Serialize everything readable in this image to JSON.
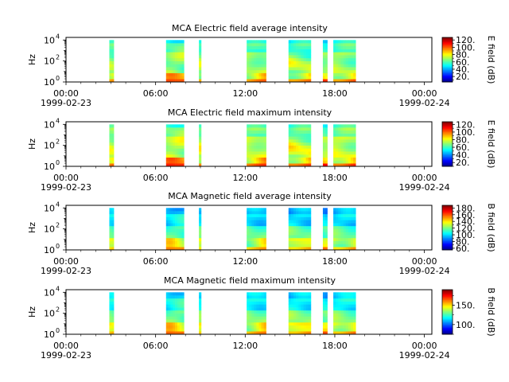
{
  "figure": {
    "background": "#ffffff",
    "x_tick_labels": [
      "00:00",
      "06:00",
      "12:00",
      "18:00",
      "00:00"
    ],
    "x_date_labels": [
      "1999-02-23",
      "1999-02-24"
    ]
  },
  "chart_data": [
    {
      "type": "heatmap",
      "title": "MCA  Electric field average intensity",
      "ylabel": "Hz",
      "colorbar_label": "E field (dB)",
      "colorbar_ticks": [
        "20.",
        "40.",
        "60.",
        "80.",
        "100.",
        "120."
      ],
      "colorbar_tick_values": [
        20,
        40,
        60,
        80,
        100,
        120
      ],
      "clim": [
        5,
        127
      ],
      "y_tick_labels": [
        "10",
        "10",
        "10"
      ],
      "y_tick_exponents": [
        "0",
        "2",
        "4"
      ],
      "yscale": "log",
      "ylim": [
        1,
        17800
      ],
      "xlim": [
        "1999-02-23 00:00",
        "1999-02-24 00:30"
      ],
      "segments": [
        {
          "start": "02:54",
          "end": "03:12"
        },
        {
          "start": "06:42",
          "end": "07:54"
        },
        {
          "start": "08:54",
          "end": "09:03"
        },
        {
          "start": "12:06",
          "end": "13:24"
        },
        {
          "start": "14:54",
          "end": "16:24"
        },
        {
          "start": "17:12",
          "end": "17:30"
        },
        {
          "start": "17:54",
          "end": "19:24"
        }
      ]
    },
    {
      "type": "heatmap",
      "title": "MCA  Electric field maximum intensity",
      "ylabel": "Hz",
      "colorbar_label": "E field (dB)",
      "colorbar_ticks": [
        "20.",
        "40.",
        "60.",
        "80.",
        "100.",
        "120."
      ],
      "colorbar_tick_values": [
        20,
        40,
        60,
        80,
        100,
        120
      ],
      "clim": [
        10,
        127
      ],
      "y_tick_labels": [
        "10",
        "10",
        "10"
      ],
      "y_tick_exponents": [
        "0",
        "2",
        "4"
      ],
      "yscale": "log",
      "ylim": [
        1,
        17800
      ],
      "xlim": [
        "1999-02-23 00:00",
        "1999-02-24 00:30"
      ],
      "segments": [
        {
          "start": "02:54",
          "end": "03:12"
        },
        {
          "start": "06:42",
          "end": "07:54"
        },
        {
          "start": "08:54",
          "end": "09:03"
        },
        {
          "start": "12:06",
          "end": "13:24"
        },
        {
          "start": "14:54",
          "end": "16:24"
        },
        {
          "start": "17:12",
          "end": "17:30"
        },
        {
          "start": "17:54",
          "end": "19:24"
        }
      ]
    },
    {
      "type": "heatmap",
      "title": "MCA  Magnetic field average intensity",
      "ylabel": "Hz",
      "colorbar_label": "B field (dB)",
      "colorbar_ticks": [
        "60.",
        "80.",
        "100.",
        "120.",
        "140.",
        "160.",
        "180."
      ],
      "colorbar_tick_values": [
        60,
        80,
        100,
        120,
        140,
        160,
        180
      ],
      "clim": [
        55,
        188
      ],
      "y_tick_labels": [
        "10",
        "10",
        "10"
      ],
      "y_tick_exponents": [
        "0",
        "2",
        "4"
      ],
      "yscale": "log",
      "ylim": [
        1,
        17800
      ],
      "xlim": [
        "1999-02-23 00:00",
        "1999-02-24 00:30"
      ],
      "segments": [
        {
          "start": "02:54",
          "end": "03:12"
        },
        {
          "start": "06:42",
          "end": "07:54"
        },
        {
          "start": "08:54",
          "end": "09:03"
        },
        {
          "start": "12:06",
          "end": "13:24"
        },
        {
          "start": "14:54",
          "end": "16:24"
        },
        {
          "start": "17:12",
          "end": "17:30"
        },
        {
          "start": "17:54",
          "end": "19:24"
        }
      ]
    },
    {
      "type": "heatmap",
      "title": "MCA  Magnetic field maximum intensity",
      "ylabel": "Hz",
      "colorbar_label": "B field (dB)",
      "colorbar_ticks": [
        "100.",
        "150."
      ],
      "colorbar_tick_values": [
        100,
        150
      ],
      "clim": [
        75,
        190
      ],
      "y_tick_labels": [
        "10",
        "10",
        "10"
      ],
      "y_tick_exponents": [
        "0",
        "2",
        "4"
      ],
      "yscale": "log",
      "ylim": [
        1,
        17800
      ],
      "xlim": [
        "1999-02-23 00:00",
        "1999-02-24 00:30"
      ],
      "segments": [
        {
          "start": "02:54",
          "end": "03:12"
        },
        {
          "start": "06:42",
          "end": "07:54"
        },
        {
          "start": "08:54",
          "end": "09:03"
        },
        {
          "start": "12:06",
          "end": "13:24"
        },
        {
          "start": "14:54",
          "end": "16:24"
        },
        {
          "start": "17:12",
          "end": "17:30"
        },
        {
          "start": "17:54",
          "end": "19:24"
        }
      ]
    }
  ]
}
